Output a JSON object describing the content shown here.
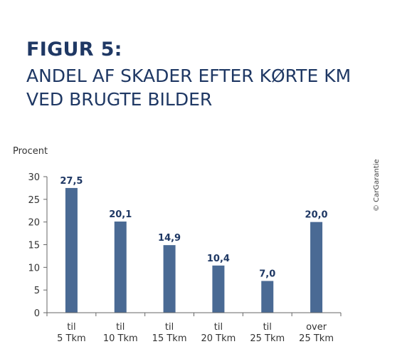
{
  "figure": {
    "label": "FIGUR 5:",
    "title_lines": [
      "ANDEL AF SKADER EFTER KØRTE KM",
      "VED BRUGTE BILDER"
    ],
    "credit": "© CarGarantie"
  },
  "colors": {
    "title": "#1f3864",
    "bar": "#4a6a94",
    "axis": "#666666"
  },
  "chart_data": {
    "type": "bar",
    "title": "ANDEL AF SKADER EFTER KØRTE KM VED BRUGTE BILDER",
    "ylabel": "Procent",
    "xlabel": "",
    "ylim": [
      0,
      30
    ],
    "yticks": [
      0,
      5,
      10,
      15,
      20,
      25,
      30
    ],
    "grid": false,
    "categories": [
      [
        "til",
        "5 Tkm"
      ],
      [
        "til",
        "10 Tkm"
      ],
      [
        "til",
        "15 Tkm"
      ],
      [
        "til",
        "20 Tkm"
      ],
      [
        "til",
        "25 Tkm"
      ],
      [
        "over",
        "25 Tkm"
      ]
    ],
    "values": [
      27.5,
      20.1,
      14.9,
      10.4,
      7.0,
      20.0
    ],
    "value_labels": [
      "27,5",
      "20,1",
      "14,9",
      "10,4",
      "7,0",
      "20,0"
    ]
  }
}
